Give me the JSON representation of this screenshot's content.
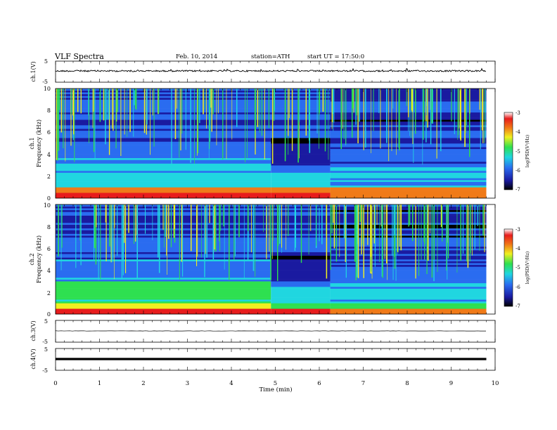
{
  "header": {
    "title": "VLF Spectra",
    "date": "Feb. 10, 2014",
    "station": "station=ATH",
    "start": "start UT =  17:50:0"
  },
  "chart_data": {
    "type": "heatmap",
    "title": "VLF Spectra",
    "xlabel": "Time  (min)",
    "xlim": [
      0,
      10
    ],
    "xticks": [
      "0",
      "1",
      "2",
      "3",
      "4",
      "5",
      "6",
      "7",
      "8",
      "9",
      "10"
    ],
    "data_end_min": 9.8,
    "panels": [
      {
        "id": "ch1v",
        "kind": "waveform",
        "ylabel": "ch.1(V)",
        "yticks": [
          "5",
          "-5"
        ],
        "ylim": [
          -5,
          5
        ],
        "trace": "noisy",
        "baseline": 0
      },
      {
        "id": "ch1",
        "kind": "spectrogram",
        "ylabel1": "ch.1",
        "ylabel2": "Frequency (kHz)",
        "ylim": [
          0,
          10
        ],
        "yticks": [
          "0",
          "2",
          "4",
          "6",
          "8",
          "10"
        ],
        "colorbar": {
          "label": "log(PSD(V²/Hz)",
          "ticks": [
            "-3",
            "-4",
            "-5",
            "-6",
            "-7"
          ],
          "range": [
            -7,
            -3
          ]
        }
      },
      {
        "id": "ch2",
        "kind": "spectrogram",
        "ylabel1": "ch.2",
        "ylabel2": "Frequency (kHz)",
        "ylim": [
          0,
          10
        ],
        "yticks": [
          "0",
          "2",
          "4",
          "6",
          "8",
          "10"
        ],
        "colorbar": {
          "label": "log(PSD(V²/Hz)",
          "ticks": [
            "-3",
            "-4",
            "-5",
            "-6",
            "-7"
          ],
          "range": [
            -7,
            -3
          ]
        }
      },
      {
        "id": "ch3v",
        "kind": "waveform",
        "ylabel": "ch.3(V)",
        "yticks": [
          "5",
          "-5"
        ],
        "ylim": [
          -5,
          5
        ],
        "trace": "flat",
        "baseline": 0
      },
      {
        "id": "ch4v",
        "kind": "waveform",
        "ylabel": "ch.4(V)",
        "yticks": [
          "5",
          "-5"
        ],
        "ylim": [
          -5,
          5
        ],
        "trace": "thick",
        "baseline": 0
      }
    ],
    "colormap": [
      "#000000",
      "#1a1aa0",
      "#2a6cf0",
      "#20d6e0",
      "#2ee050",
      "#f0f020",
      "#f07a18",
      "#e81c1c",
      "#ffffff"
    ]
  }
}
